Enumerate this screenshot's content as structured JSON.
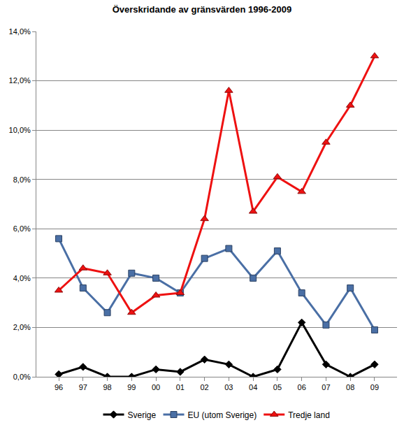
{
  "chart_data": {
    "type": "line",
    "title": "Överskridande av gränsvärden 1996-2009",
    "categories": [
      "96",
      "97",
      "98",
      "99",
      "00",
      "01",
      "02",
      "03",
      "04",
      "05",
      "06",
      "07",
      "08",
      "09"
    ],
    "series": [
      {
        "name": "Sverige",
        "color": "#000000",
        "marker": "diamond",
        "line_style": "solid",
        "values": [
          0.1,
          0.4,
          0.0,
          0.0,
          0.3,
          0.2,
          0.7,
          0.5,
          0.0,
          0.3,
          2.2,
          0.5,
          0.0,
          0.5
        ]
      },
      {
        "name": "EU (utom Sverige)",
        "color": "#4a6fa5",
        "marker": "square",
        "line_style": "solid",
        "values": [
          5.6,
          3.6,
          2.6,
          4.2,
          4.0,
          3.4,
          4.8,
          5.2,
          4.0,
          5.1,
          3.4,
          2.1,
          3.6,
          1.9
        ]
      },
      {
        "name": "Tredje land",
        "color": "#ee1111",
        "marker": "triangle-up",
        "line_style": "solid",
        "values": [
          3.5,
          4.4,
          4.2,
          2.6,
          3.3,
          3.4,
          6.4,
          11.6,
          6.7,
          8.1,
          7.5,
          9.5,
          11.0,
          13.0
        ]
      }
    ],
    "ylim": [
      0,
      14
    ],
    "yticks": [
      {
        "value": 0,
        "label": "0,0%"
      },
      {
        "value": 2,
        "label": "2,0%"
      },
      {
        "value": 4,
        "label": "4,0%"
      },
      {
        "value": 6,
        "label": "6,0%"
      },
      {
        "value": 8,
        "label": "8,0%"
      },
      {
        "value": 10,
        "label": "10,0%"
      },
      {
        "value": 12,
        "label": "12,0%"
      },
      {
        "value": 14,
        "label": "14,0%"
      }
    ],
    "grid": true,
    "legend": "bottom"
  }
}
